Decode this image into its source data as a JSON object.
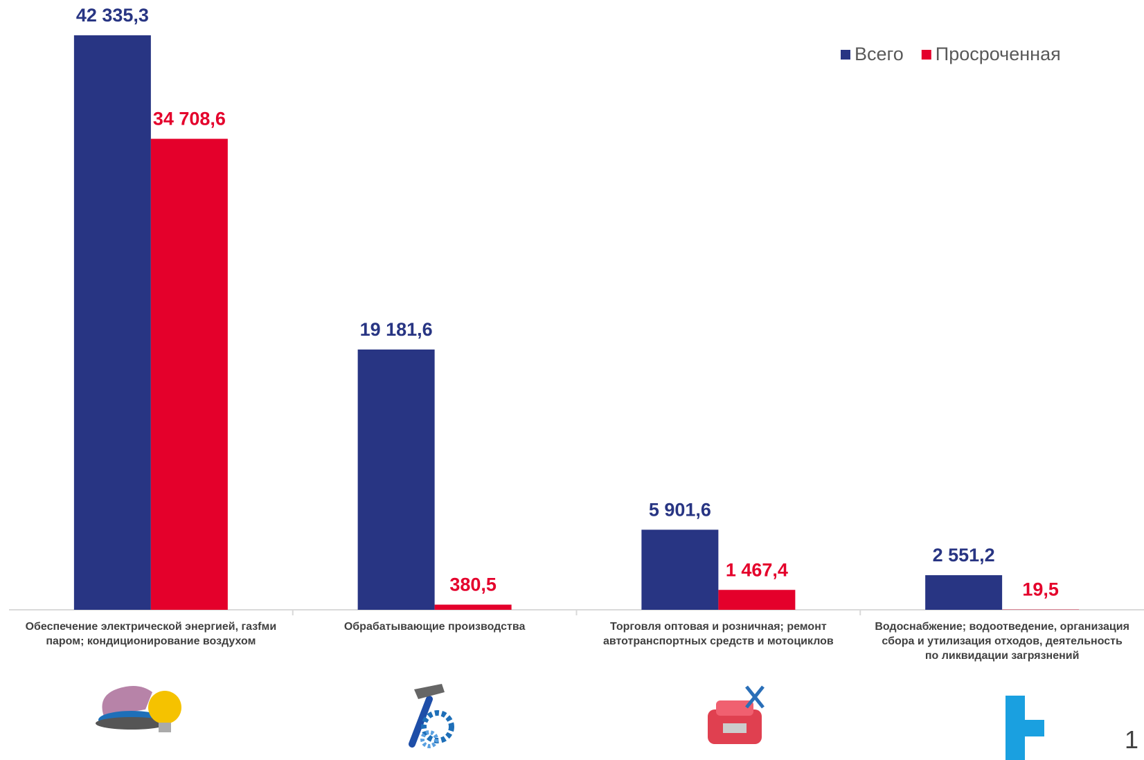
{
  "chart_data": {
    "type": "bar",
    "categories": [
      "Обеспечение  электрической  энергией, газfми паром;  кондиционирование воздухом",
      "Обрабатывающие  производства",
      "Торговля оптовая и  розничная; ремонт автотранспортных средств и мотоциклов",
      "Водоснабжение;  водоотведение, организация сбора и  утилизация отходов, деятельность  по ликвидации загрязнений"
    ],
    "series": [
      {
        "name": "Всего",
        "color": "#283583",
        "values": [
          42335.3,
          19181.6,
          5901.6,
          2551.2
        ],
        "value_labels": [
          "42 335,3",
          "19 181,6",
          "5 901,6",
          "2 551,2"
        ]
      },
      {
        "name": "Просроченная",
        "color": "#e4002b",
        "values": [
          34708.6,
          380.5,
          1467.4,
          19.5
        ],
        "value_labels": [
          "34 708,6",
          "380,5",
          "1 467,4",
          "19,5"
        ]
      }
    ],
    "legend": "top-right"
  },
  "page_number": "1"
}
